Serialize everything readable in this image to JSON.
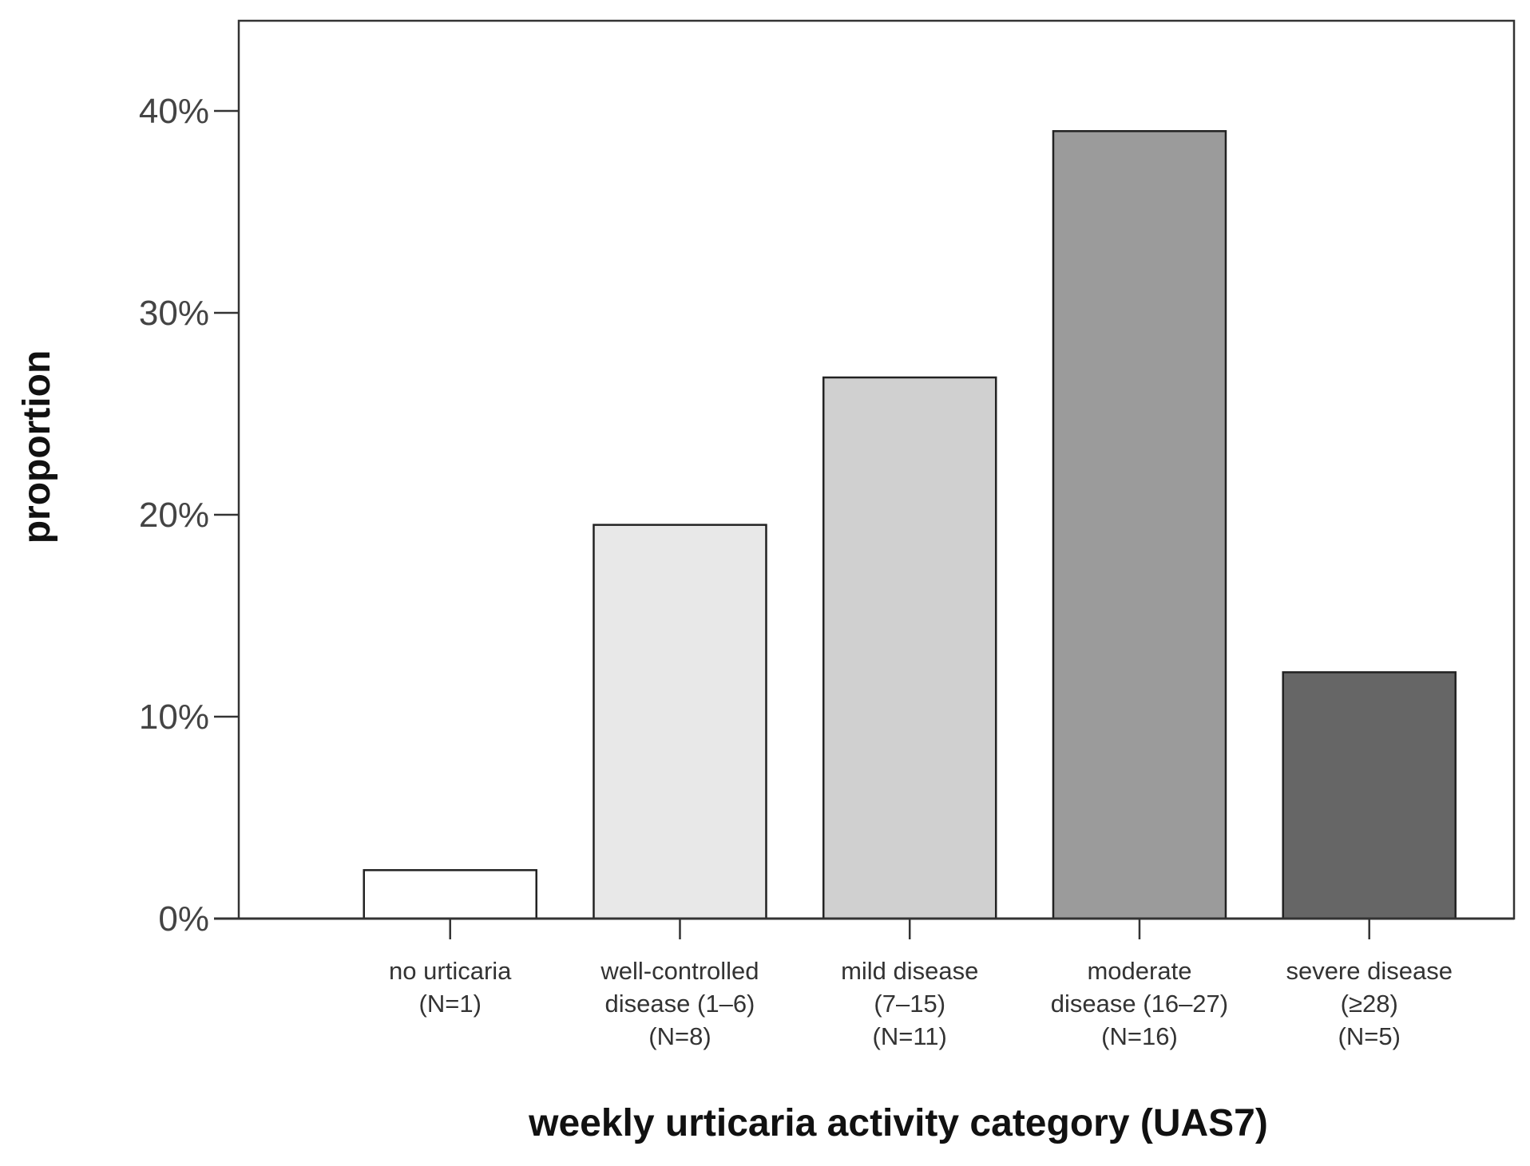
{
  "chart_data": {
    "type": "bar",
    "title": "",
    "xlabel": "weekly urticaria activity category (UAS7)",
    "ylabel": "proportion",
    "ylim": [
      0,
      45
    ],
    "yticks": [
      0,
      10,
      20,
      30,
      40
    ],
    "ytick_labels": [
      "0%",
      "10%",
      "20%",
      "30%",
      "40%"
    ],
    "categories": [
      {
        "lines": [
          "no urticaria",
          "(N=1)"
        ]
      },
      {
        "lines": [
          "well-controlled",
          "disease (1–6)",
          "(N=8)"
        ]
      },
      {
        "lines": [
          "mild disease",
          "(7–15)",
          "(N=11)"
        ]
      },
      {
        "lines": [
          "moderate",
          "disease (16–27)",
          "(N=16)"
        ]
      },
      {
        "lines": [
          "severe disease",
          "(≥28)",
          "(N=5)"
        ]
      }
    ],
    "values": [
      2.4,
      19.5,
      26.8,
      39.0,
      12.2
    ],
    "colors": [
      "#ffffff",
      "#e8e8e8",
      "#d0d0d0",
      "#9b9b9b",
      "#666666"
    ],
    "grid": false,
    "legend": "none"
  }
}
